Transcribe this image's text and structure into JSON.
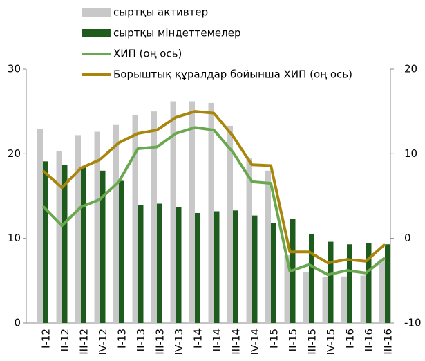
{
  "chart_data": {
    "type": "bar_line",
    "categories": [
      "I-12",
      "II-12",
      "III-12",
      "IV-12",
      "I-13",
      "II-13",
      "III-13",
      "IV-13",
      "I-14",
      "II-14",
      "III-14",
      "IV-14",
      "I-15",
      "II-15",
      "III-15",
      "IV-15",
      "I-16",
      "II-16",
      "III-16"
    ],
    "series": [
      {
        "name": "сыртқы активтер",
        "type": "bar",
        "color": "#c8c8c8",
        "axis": "y",
        "values": [
          22.9,
          20.3,
          22.2,
          22.6,
          23.4,
          24.6,
          25.0,
          26.2,
          26.2,
          26.0,
          23.3,
          19.5,
          18.0,
          8.0,
          6.0,
          5.4,
          5.5,
          5.6,
          7.5
        ]
      },
      {
        "name": "сыртқы міндеттемелер",
        "type": "bar",
        "color": "#1e5c1e",
        "axis": "y",
        "values": [
          19.1,
          18.7,
          18.4,
          18.0,
          16.8,
          13.9,
          14.1,
          13.7,
          13.0,
          13.2,
          13.3,
          12.7,
          11.8,
          12.3,
          10.5,
          9.6,
          9.3,
          9.4,
          9.3
        ]
      },
      {
        "name": "ХИП (оң ось)",
        "type": "line",
        "color": "#6aa84f",
        "axis": "y2",
        "values": [
          3.8,
          1.5,
          3.7,
          4.6,
          6.7,
          10.6,
          10.8,
          12.4,
          13.1,
          12.8,
          10.2,
          6.7,
          6.5,
          -3.9,
          -3.1,
          -4.3,
          -3.8,
          -4.1,
          -2.3
        ]
      },
      {
        "name": "Борыштық құралдар бойынша ХИП (оң ось)",
        "type": "line",
        "color": "#a8860b",
        "axis": "y2",
        "values": [
          8.0,
          6.0,
          8.3,
          9.3,
          11.3,
          12.4,
          12.8,
          14.3,
          15.0,
          14.8,
          12.1,
          8.7,
          8.6,
          -1.6,
          -1.6,
          -2.9,
          -2.5,
          -2.7,
          -0.7
        ]
      }
    ],
    "ylim": [
      0,
      30
    ],
    "yticks": [
      0,
      10,
      20,
      30
    ],
    "y2lim": [
      -10,
      20
    ],
    "y2ticks": [
      -10,
      0,
      10,
      20
    ]
  }
}
